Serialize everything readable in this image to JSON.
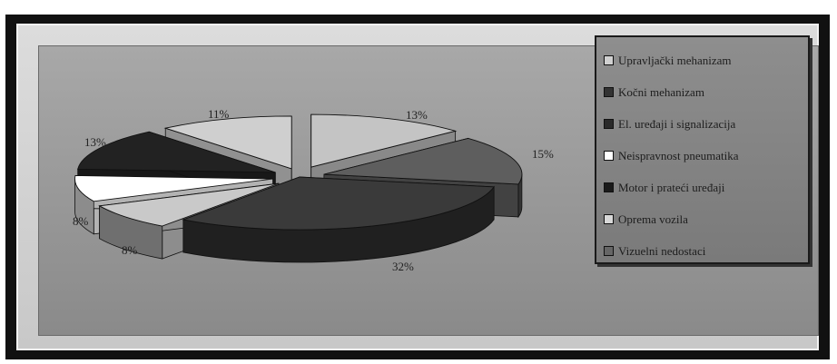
{
  "chart_data": {
    "type": "pie",
    "exploded": true,
    "three_d": true,
    "legend_position": "right",
    "slices": [
      {
        "name": "Upravljački mehanizam",
        "value": 13,
        "label": "13%",
        "color": "#c4c4c4"
      },
      {
        "name": "Kočni mehanizam",
        "value": 15,
        "label": "15%",
        "color": "#5e5e5e"
      },
      {
        "name": "El. uređaji i signalizacija",
        "value": 32,
        "label": "32%",
        "color": "#3a3a3a"
      },
      {
        "name": "Neispravnost pneumatika",
        "value": 8,
        "label": "8%",
        "color": "#c9c9c9"
      },
      {
        "name": "Motor i prateći uređaji",
        "value": 8,
        "label": "8%",
        "color": "#ffffff"
      },
      {
        "name": "Oprema vozila",
        "value": 13,
        "label": "13%",
        "color": "#222222"
      },
      {
        "name": "Vizuelni nedostaci",
        "value": 11,
        "label": "11%",
        "color": "#cfcfcf"
      }
    ]
  },
  "legend": {
    "items": [
      {
        "label": "Upravljački mehanizam",
        "color": "#d0d0d0"
      },
      {
        "label": "Kočni mehanizam",
        "color": "#333333"
      },
      {
        "label": "El. uređaji i signalizacija",
        "color": "#2a2a2a"
      },
      {
        "label": "Neispravnost pneumatika",
        "color": "#ffffff"
      },
      {
        "label": "Motor i prateći uređaji",
        "color": "#1a1a1a"
      },
      {
        "label": "Oprema vozila",
        "color": "#d8d8d8"
      },
      {
        "label": "Vizuelni nedostaci",
        "color": "#666666"
      }
    ]
  }
}
